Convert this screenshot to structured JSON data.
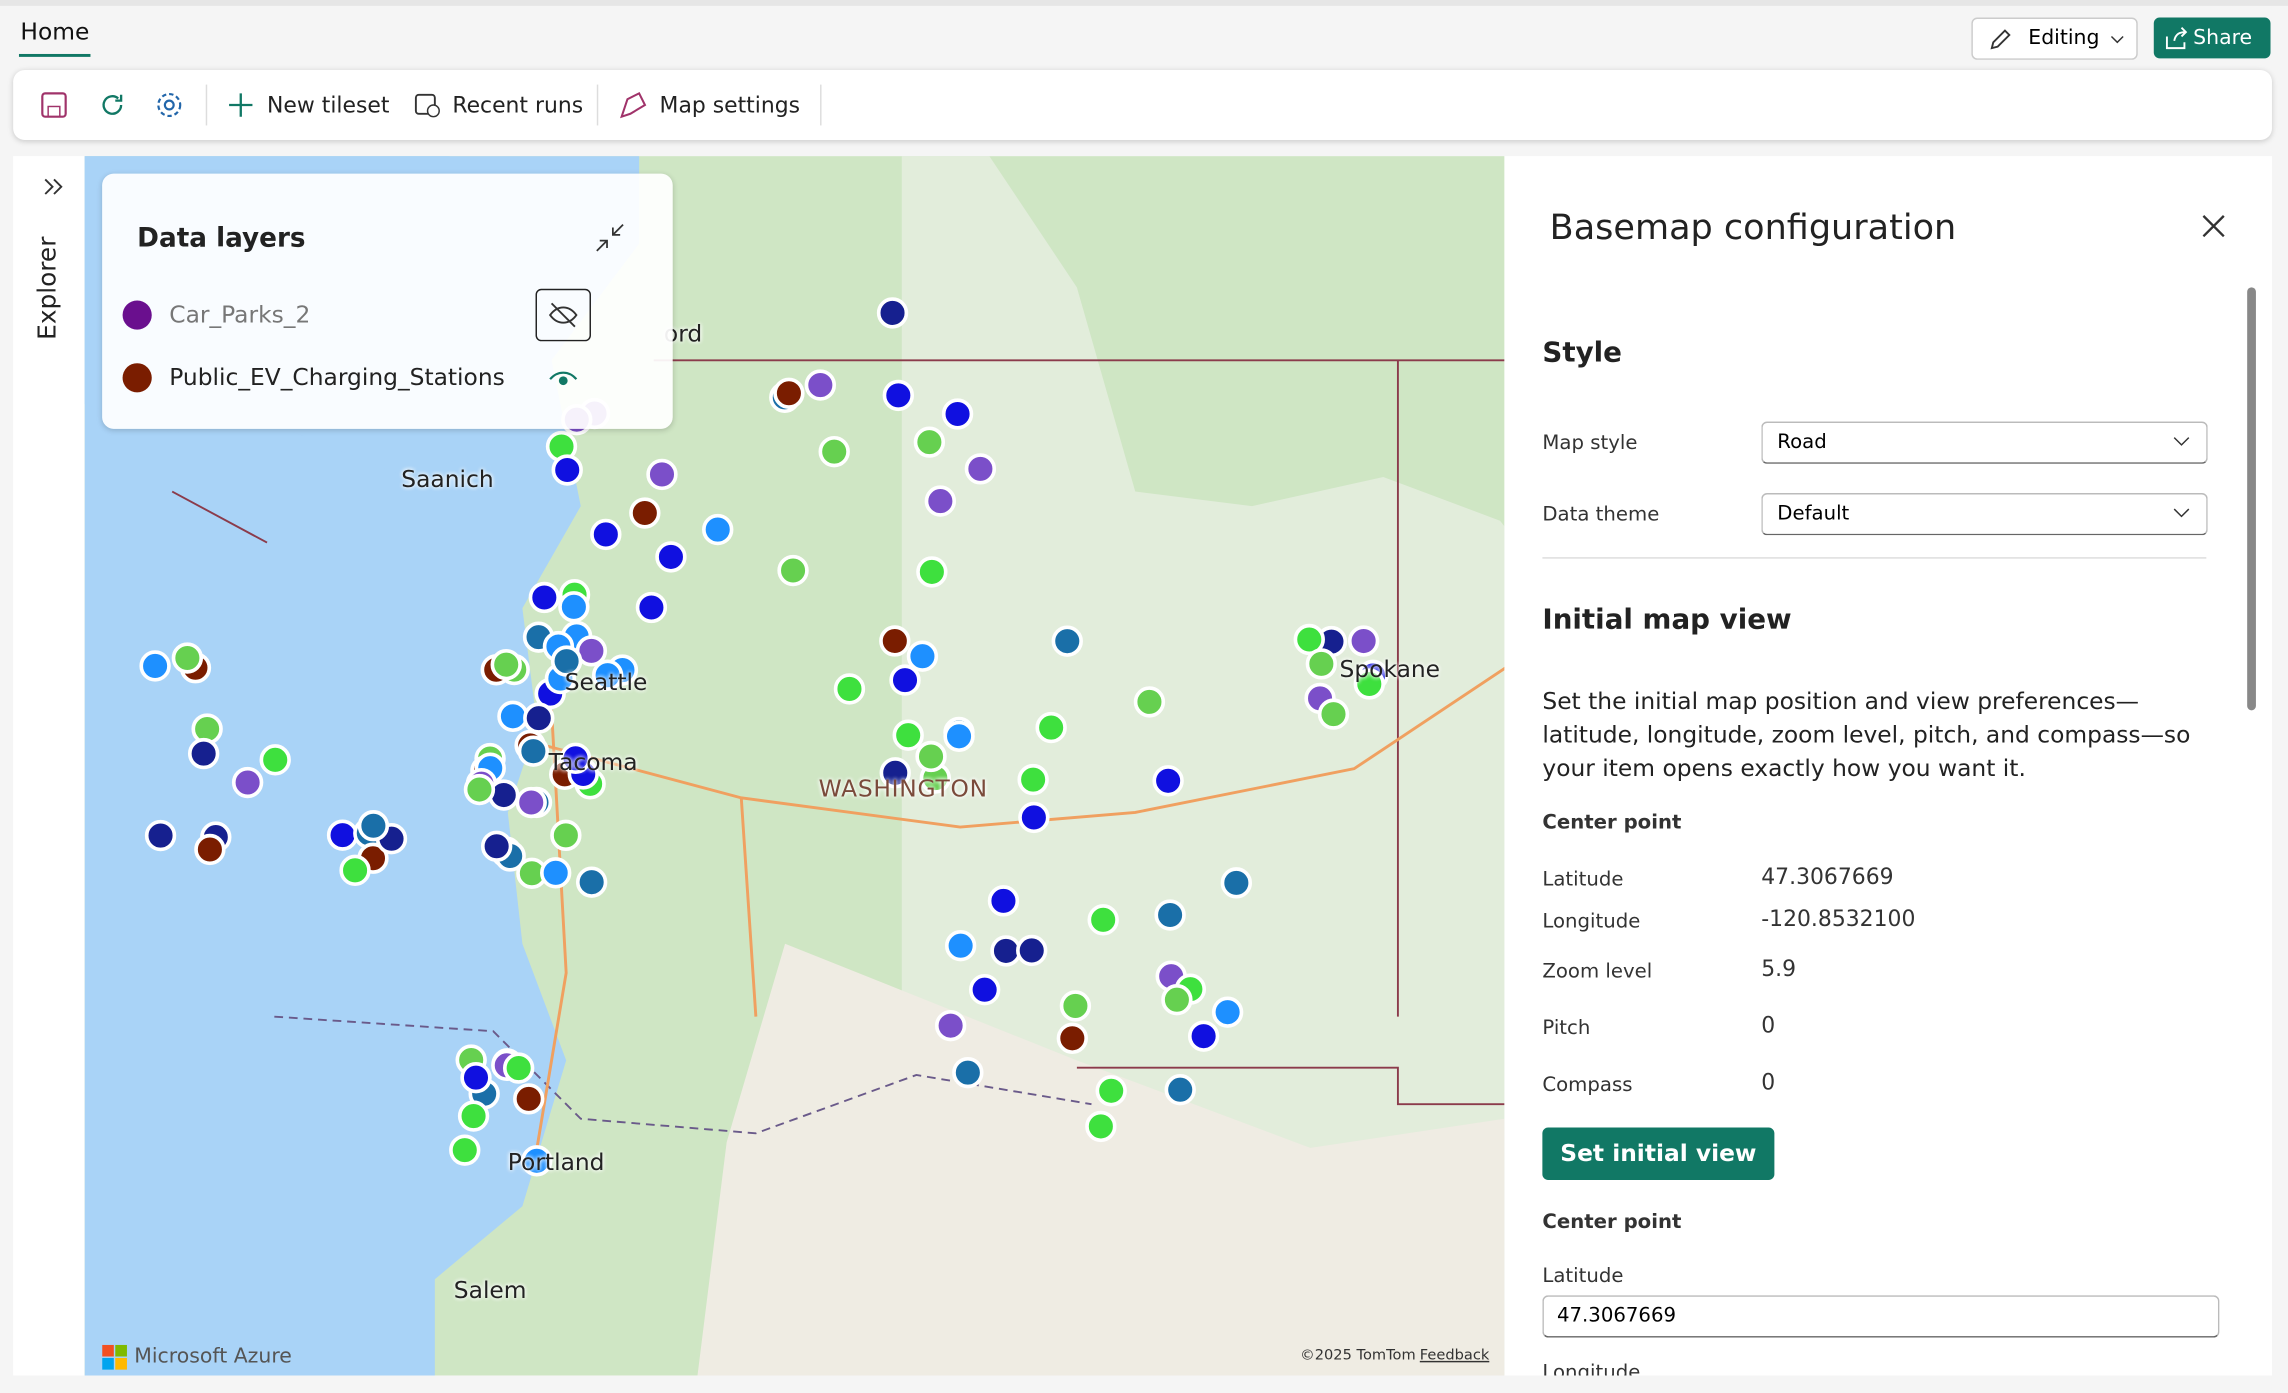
{
  "header": {
    "tab": "Home",
    "editing": "Editing",
    "share": "Share"
  },
  "toolbar": {
    "new_tileset": "New tileset",
    "recent_runs": "Recent runs",
    "map_settings": "Map settings"
  },
  "explorer": "Explorer",
  "data_layers": {
    "title": "Data layers",
    "layers": [
      {
        "name": "Car_Parks_2",
        "color": "#6a0f8e"
      },
      {
        "name": "Public_EV_Charging_Stations",
        "color": "#7a1d00"
      }
    ]
  },
  "map": {
    "labels": [
      "Saanich",
      "Seattle",
      "Tacoma",
      "WASHINGTON",
      "Spokane",
      "Portland",
      "Salem",
      "ord"
    ],
    "attribution": "©2025 TomTom",
    "feedback": "Feedback",
    "brand": "Microsoft Azure"
  },
  "panel": {
    "title": "Basemap configuration",
    "style_heading": "Style",
    "map_style": {
      "label": "Map style",
      "value": "Road"
    },
    "data_theme": {
      "label": "Data theme",
      "value": "Default"
    },
    "initial_heading": "Initial map view",
    "description": "Set the initial map position and view preferences—latitude, longitude, zoom level, pitch, and compass—so your item opens exactly how you want it.",
    "center_point": "Center point",
    "fields": [
      {
        "label": "Latitude",
        "value": "47.3067669"
      },
      {
        "label": "Longitude",
        "value": "-120.8532100"
      },
      {
        "label": "Zoom level",
        "value": "5.9"
      },
      {
        "label": "Pitch",
        "value": "0"
      },
      {
        "label": "Compass",
        "value": "0"
      }
    ],
    "button": "Set initial view",
    "center_point_2": "Center point",
    "latitude_label": "Latitude",
    "latitude_input": "47.3067669",
    "longitude_label": "Longitude"
  }
}
